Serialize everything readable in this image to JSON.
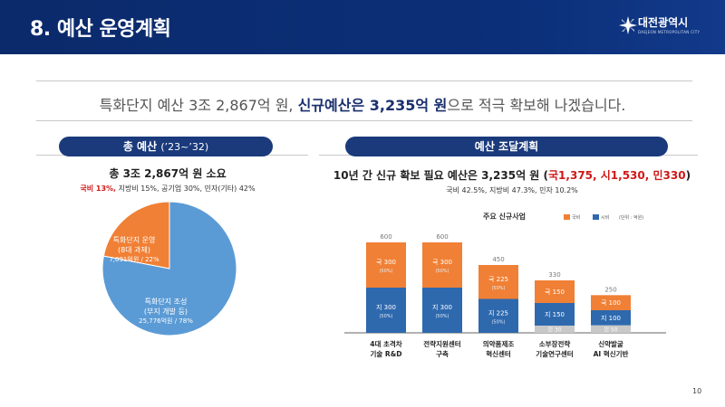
{
  "header": {
    "title": "8. 예산 운영계획",
    "logo_name": "대전광역시",
    "logo_sub": "DAEJEON METROPOLITAN CITY"
  },
  "headline": {
    "part1": "특화단지 예산 3조 2,867억 원, ",
    "strong1": "신규예산은 3,235억 원",
    "part2": "으로 적극 확보해 나겠습니다."
  },
  "left_section": {
    "pill_label": "총 예산",
    "pill_period": "(’23~’32)",
    "title": "총 3조 2,867억 원 소요",
    "sub_red": "국비 13%,",
    "sub_rest": " 지방비 15%, 공기업 30%, 민자(기타) 42%",
    "pie": {
      "slices": [
        {
          "line1": "특화단지 운영",
          "line2": "(8대 과제)",
          "line3": "7,091억원 / 22%",
          "percent": 22,
          "color": "#f08035"
        },
        {
          "line1": "특화단지 조성",
          "line2": "(부지 개발 등)",
          "line3": "25,776억원 / 78%",
          "percent": 78,
          "color": "#5b9bd5"
        }
      ]
    }
  },
  "right_section": {
    "pill_label": "예산 조달계획",
    "title_main": "10년 간 신규 확보 필요 예산은 3,235억 원 (",
    "title_red": "국1,375, 시1,530, 민330",
    "title_end": ")",
    "sub": "국비 42.5%, 지방비 47.3%, 민자 10.2%",
    "chart_title": "주요 신규사업",
    "legend": {
      "national": "국비",
      "city": "시비",
      "unit": "(단위 : 억원)"
    }
  },
  "chart_data": {
    "type": "bar",
    "stacked": true,
    "title": "주요 신규사업",
    "unit": "(단위 : 억원)",
    "categories": [
      [
        "4대 초격차",
        "기술 R&D"
      ],
      [
        "전략지원센터",
        "구축"
      ],
      [
        "의약품제조",
        "혁신센터"
      ],
      [
        "소부장전략",
        "기술연구센터"
      ],
      [
        "신약발굴",
        "AI 혁신기반"
      ]
    ],
    "totals": [
      600,
      600,
      450,
      330,
      250
    ],
    "series": [
      {
        "name": "시비",
        "color": "#2e69ae",
        "values": [
          300,
          300,
          225,
          150,
          100
        ],
        "labels": [
          "지 300",
          "지 300",
          "지 225",
          "지 150",
          "지 100"
        ],
        "pct": [
          "(50%)",
          "(50%)",
          "(50%)",
          "",
          ""
        ]
      },
      {
        "name": "국비",
        "color": "#f08035",
        "values": [
          300,
          300,
          225,
          150,
          100
        ],
        "labels": [
          "국 300",
          "국 300",
          "국 225",
          "국 150",
          "국 100"
        ],
        "pct": [
          "(50%)",
          "(50%)",
          "(50%)",
          "",
          ""
        ]
      },
      {
        "name": "민자",
        "color": "#c8c8c8",
        "values": [
          0,
          0,
          0,
          30,
          50
        ],
        "labels": [
          "",
          "",
          "",
          "민 30",
          "민 50"
        ],
        "pct": [
          "",
          "",
          "",
          "",
          ""
        ]
      }
    ],
    "ylim": [
      0,
      600
    ]
  },
  "page_number": "10"
}
